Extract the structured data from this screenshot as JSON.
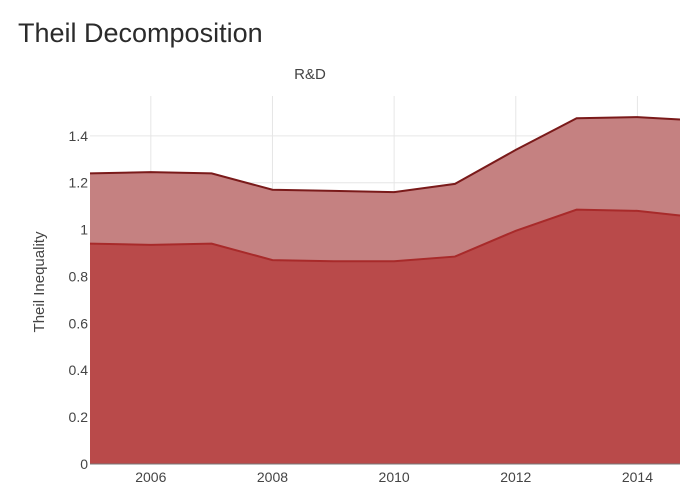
{
  "page": {
    "title": "Theil Decomposition"
  },
  "chart_data": {
    "type": "area",
    "title": "R&D",
    "xlabel": "",
    "ylabel": "Theil Inequality",
    "xlim": [
      2005,
      2014.7
    ],
    "ylim": [
      0,
      1.57
    ],
    "x_ticks": [
      "2006",
      "2008",
      "2010",
      "2012",
      "2014"
    ],
    "y_ticks": [
      "0",
      "0.2",
      "0.4",
      "0.6",
      "0.8",
      "1",
      "1.2",
      "1.4"
    ],
    "grid": true,
    "stacked": true,
    "x": [
      2005,
      2006,
      2007,
      2008,
      2009,
      2010,
      2011,
      2012,
      2013,
      2014,
      2014.7
    ],
    "series": [
      {
        "values": [
          0.94,
          0.935,
          0.94,
          0.87,
          0.865,
          0.865,
          0.885,
          0.995,
          1.085,
          1.08,
          1.06
        ],
        "color": "#b94a4a",
        "line_color": "#a82a2a"
      },
      {
        "values": [
          0.3,
          0.31,
          0.3,
          0.3,
          0.3,
          0.295,
          0.31,
          0.345,
          0.39,
          0.4,
          0.41
        ],
        "color": "#c58181",
        "line_color": "#7a1a1a"
      }
    ]
  }
}
